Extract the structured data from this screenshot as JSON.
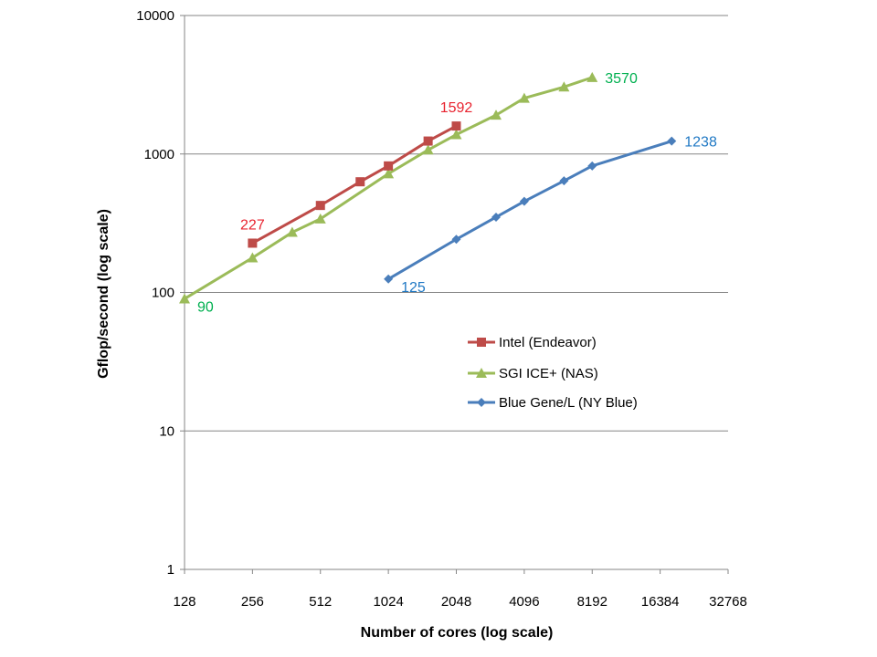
{
  "chart_data": {
    "type": "line",
    "title": "",
    "xlabel": "Number of cores (log scale)",
    "ylabel": "Gflop/second (log scale)",
    "x_scale": "log2",
    "y_scale": "log10",
    "xlim": [
      128,
      32768
    ],
    "ylim": [
      1,
      10000
    ],
    "x_ticks": [
      "128",
      "256",
      "512",
      "1024",
      "2048",
      "4096",
      "8192",
      "16384",
      "32768"
    ],
    "y_ticks": [
      "1",
      "10",
      "100",
      "1000",
      "10000"
    ],
    "grid": "horizontal",
    "legend_position": "right",
    "series": [
      {
        "name": "Intel (Endeavor)",
        "color": "#BE4B48",
        "marker": "square",
        "x": [
          256,
          512,
          768,
          1024,
          1536,
          2048
        ],
        "y": [
          227,
          425,
          630,
          820,
          1240,
          1592
        ],
        "labels": [
          {
            "index": 0,
            "text": "227",
            "position": "above"
          },
          {
            "index": 5,
            "text": "1592",
            "position": "above"
          }
        ]
      },
      {
        "name": "SGI ICE+ (NAS)",
        "color": "#9BBB59",
        "marker": "triangle",
        "x": [
          128,
          256,
          384,
          512,
          1024,
          1536,
          2048,
          3072,
          4096,
          6144,
          8192
        ],
        "y": [
          90,
          178,
          272,
          340,
          720,
          1070,
          1380,
          1910,
          2530,
          3050,
          3570
        ],
        "labels": [
          {
            "index": 0,
            "text": "90",
            "position": "right"
          },
          {
            "index": 10,
            "text": "3570",
            "position": "right"
          }
        ]
      },
      {
        "name": "Blue Gene/L (NY Blue)",
        "color": "#4A7EBB",
        "marker": "diamond",
        "x": [
          1024,
          2048,
          3072,
          4096,
          6144,
          8192,
          18432
        ],
        "y": [
          125,
          242,
          350,
          455,
          640,
          820,
          1238
        ],
        "labels": [
          {
            "index": 0,
            "text": "125",
            "position": "right"
          },
          {
            "index": 6,
            "text": "1238",
            "position": "right"
          }
        ]
      }
    ]
  }
}
